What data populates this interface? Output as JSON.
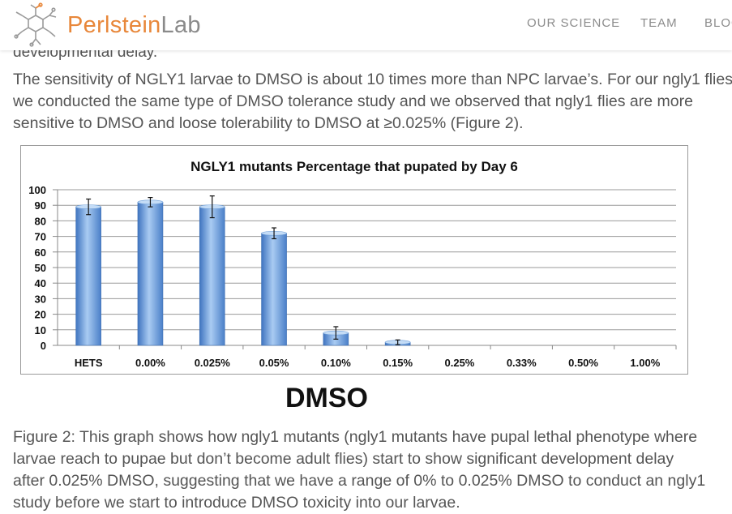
{
  "header": {
    "brand_part1": "Perlstein",
    "brand_part2": "Lab",
    "nav": [
      "OUR SCIENCE",
      "TEAM",
      "BLOG"
    ],
    "brand_orange": "#e8873a"
  },
  "body": {
    "cut_text": "developmental delay.",
    "paragraph_lines": [
      "The sensitivity of NGLY1 larvae to DMSO is about 10 times more than NPC larvae’s. For our ngly1 flies,",
      "we conducted the same type of DMSO tolerance study and we observed that ngly1 flies are more",
      "sensitive to DMSO and loose tolerability to DMSO at  ≥0.025% (Figure 2)."
    ],
    "chart_caption_below": "DMSO",
    "caption_lines": [
      "Figure 2: This graph shows how ngly1 mutants (ngly1 mutants have pupal lethal phenotype where",
      "larvae reach to pupae but don’t become adult flies) start to show significant development delay",
      "after 0.025% DMSO, suggesting that we have a range of 0% to 0.025% DMSO to conduct an ngly1",
      "study before we start to introduce DMSO toxicity into our larvae."
    ]
  },
  "chart_data": {
    "type": "bar",
    "title": "NGLY1 mutants Percentage that pupated by Day 6",
    "xlabel": "DMSO",
    "ylabel": "",
    "categories": [
      "HETS",
      "0.00%",
      "0.025%",
      "0.05%",
      "0.10%",
      "0.15%",
      "0.25%",
      "0.33%",
      "0.50%",
      "1.00%"
    ],
    "values": [
      89,
      92,
      89,
      72,
      8,
      2,
      0,
      0,
      0,
      0
    ],
    "errors": [
      5,
      3,
      7,
      3.5,
      4,
      1.5,
      0,
      0,
      0,
      0
    ],
    "ylim": [
      0,
      100
    ],
    "yticks": [
      0,
      10,
      20,
      30,
      40,
      50,
      60,
      70,
      80,
      90,
      100
    ],
    "grid": true,
    "bar_color": "#6f9fd8"
  }
}
